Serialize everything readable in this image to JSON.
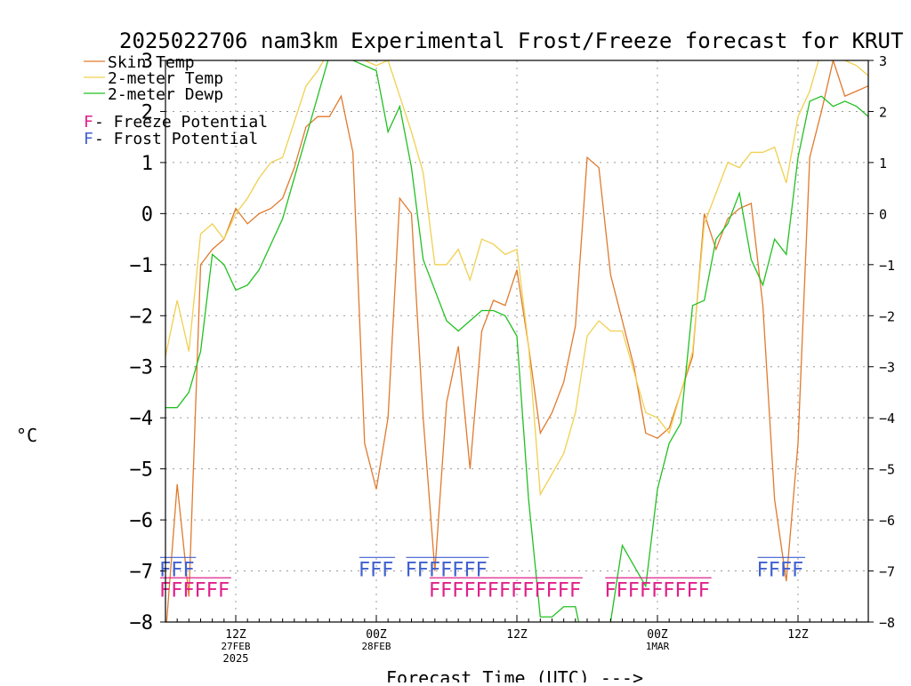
{
  "chart_data": {
    "type": "line",
    "title": "2025022706 nam3km Experimental Frost/Freeze forecast for KRUT",
    "xlabel": "Forecast Time (UTC) --->",
    "ylabel": "°C",
    "ylim": [
      -8,
      3
    ],
    "xlim": [
      0,
      60
    ],
    "yticks": [
      -8,
      -7,
      -6,
      -5,
      -4,
      -3,
      -2,
      -1,
      0,
      1,
      2,
      3
    ],
    "grid": true,
    "legend_position": "top-left",
    "x_ticks": [
      {
        "x": 6,
        "label": "12Z",
        "sub": "27FEB",
        "sub2": "2025"
      },
      {
        "x": 18,
        "label": "00Z",
        "sub": "28FEB",
        "sub2": ""
      },
      {
        "x": 30,
        "label": "12Z",
        "sub": "",
        "sub2": ""
      },
      {
        "x": 42,
        "label": "00Z",
        "sub": "1MAR",
        "sub2": ""
      },
      {
        "x": 54,
        "label": "12Z",
        "sub": "",
        "sub2": ""
      }
    ],
    "x": [
      0,
      1,
      2,
      3,
      4,
      5,
      6,
      7,
      8,
      9,
      10,
      11,
      12,
      13,
      14,
      15,
      16,
      17,
      18,
      19,
      20,
      21,
      22,
      23,
      24,
      25,
      26,
      27,
      28,
      29,
      30,
      31,
      32,
      33,
      34,
      35,
      36,
      37,
      38,
      39,
      40,
      41,
      42,
      43,
      44,
      45,
      46,
      47,
      48,
      49,
      50,
      51,
      52,
      53,
      54,
      55,
      56,
      57,
      58,
      59,
      60
    ],
    "series": [
      {
        "name": "Skin Temp",
        "color": "#e07a2e",
        "values": [
          -8.3,
          -5.3,
          -7.5,
          -1.0,
          -0.7,
          -0.5,
          0.1,
          -0.2,
          0.0,
          0.1,
          0.3,
          0.9,
          1.7,
          1.9,
          1.9,
          2.3,
          1.2,
          -4.5,
          -5.4,
          -4.0,
          0.3,
          0.0,
          -4.0,
          -7.0,
          -3.7,
          -2.6,
          -5.0,
          -2.3,
          -1.7,
          -1.8,
          -1.1,
          -2.6,
          -4.3,
          -3.9,
          -3.3,
          -2.2,
          1.1,
          0.9,
          -1.2,
          -2.1,
          -3.0,
          -4.3,
          -4.4,
          -4.2,
          -3.5,
          -2.8,
          0.0,
          -0.7,
          -0.1,
          0.1,
          0.2,
          -1.8,
          -5.6,
          -7.2,
          -4.5,
          1.1,
          2.0,
          3.0,
          2.3,
          2.4,
          2.5
        ]
      },
      {
        "name": "2-meter Temp",
        "color": "#f0d050",
        "values": [
          -2.8,
          -1.7,
          -2.7,
          -0.4,
          -0.2,
          -0.5,
          0.0,
          0.3,
          0.7,
          1.0,
          1.1,
          1.8,
          2.5,
          2.8,
          3.2,
          3.3,
          3.1,
          3.0,
          2.9,
          3.0,
          2.3,
          1.6,
          0.8,
          -1.0,
          -1.0,
          -0.7,
          -1.3,
          -0.5,
          -0.6,
          -0.8,
          -0.7,
          -2.6,
          -5.5,
          -5.1,
          -4.7,
          -3.9,
          -2.4,
          -2.1,
          -2.3,
          -2.3,
          -3.1,
          -3.9,
          -4.0,
          -4.3,
          -3.5,
          -2.7,
          -0.2,
          0.4,
          1.0,
          0.9,
          1.2,
          1.2,
          1.3,
          0.6,
          1.9,
          2.4,
          3.2,
          3.1,
          3.0,
          2.9,
          2.7
        ]
      },
      {
        "name": "2-meter Dewp",
        "color": "#22c022",
        "values": [
          -3.8,
          -3.8,
          -3.5,
          -2.7,
          -0.8,
          -1.0,
          -1.5,
          -1.4,
          -1.1,
          -0.6,
          -0.1,
          0.7,
          1.5,
          2.3,
          3.1,
          3.3,
          3.0,
          2.9,
          2.8,
          1.6,
          2.1,
          0.9,
          -0.9,
          -1.5,
          -2.1,
          -2.3,
          -2.1,
          -1.9,
          -1.9,
          -2.0,
          -2.4,
          -5.6,
          -7.9,
          -7.9,
          -7.7,
          -7.7,
          -8.8,
          -8.6,
          -8.0,
          -6.5,
          -6.9,
          -7.3,
          -5.4,
          -4.5,
          -4.1,
          -1.8,
          -1.7,
          -0.5,
          -0.2,
          0.4,
          -0.9,
          -1.4,
          -0.5,
          -0.8,
          1.1,
          2.2,
          2.3,
          2.1,
          2.2,
          2.1,
          1.9
        ]
      }
    ],
    "legend": [
      {
        "name": "Skin Temp",
        "color": "#e07a2e"
      },
      {
        "name": "2-meter Temp",
        "color": "#f0d050"
      },
      {
        "name": "2-meter Dewp",
        "color": "#22c022"
      }
    ],
    "potential_legend": [
      {
        "letter": "F",
        "text": " - Freeze Potential",
        "letter_color": "#e0208a"
      },
      {
        "letter": "F",
        "text": " - Frost Potential",
        "letter_color": "#4060d0"
      }
    ],
    "frost_markers": {
      "color": "#4060d0",
      "level": -7.1,
      "x": [
        0,
        1,
        2,
        17,
        18,
        19,
        21,
        22,
        23,
        24,
        25,
        26,
        27,
        51,
        52,
        53,
        54
      ]
    },
    "freeze_markers": {
      "color": "#e0208a",
      "level": -7.5,
      "x": [
        0,
        1,
        2,
        3,
        4,
        5,
        23,
        24,
        25,
        26,
        27,
        28,
        29,
        30,
        31,
        32,
        33,
        34,
        35,
        38,
        39,
        40,
        41,
        42,
        43,
        44,
        45,
        46
      ]
    }
  }
}
